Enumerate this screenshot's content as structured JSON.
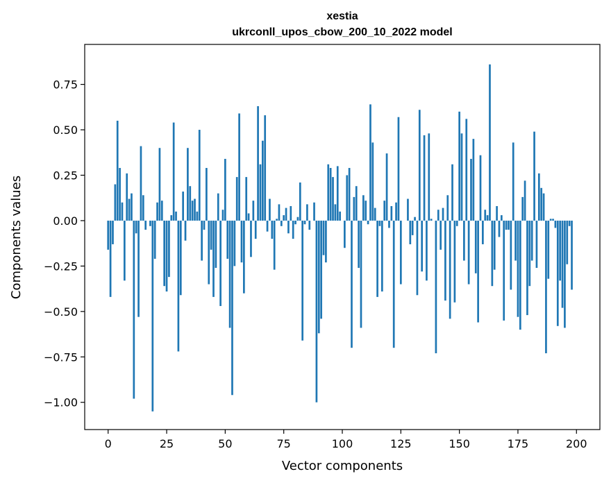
{
  "chart_data": {
    "type": "bar",
    "title": "xestia",
    "subtitle": "ukrconll_upos_cbow_200_10_2022 model",
    "xlabel": "Vector components",
    "ylabel": "Components values",
    "xlim": [
      -10,
      210
    ],
    "ylim": [
      -1.15,
      0.97
    ],
    "xticks": [
      0,
      25,
      50,
      75,
      100,
      125,
      150,
      175,
      200
    ],
    "xtick_labels": [
      "0",
      "25",
      "50",
      "75",
      "100",
      "125",
      "150",
      "175",
      "200"
    ],
    "yticks": [
      -1.0,
      -0.75,
      -0.5,
      -0.25,
      0.0,
      0.25,
      0.5,
      0.75
    ],
    "ytick_labels": [
      "−1.00",
      "−0.75",
      "−0.50",
      "−0.25",
      "0.00",
      "0.25",
      "0.50",
      "0.75"
    ],
    "grid": false,
    "bar_color": "#1f77b4",
    "values": [
      -0.16,
      -0.42,
      -0.13,
      0.2,
      0.55,
      0.29,
      0.1,
      -0.33,
      0.26,
      0.12,
      0.15,
      -0.98,
      -0.07,
      -0.53,
      0.41,
      0.14,
      -0.05,
      0.0,
      -0.03,
      -1.05,
      -0.21,
      0.1,
      0.4,
      0.11,
      -0.36,
      -0.39,
      -0.31,
      0.03,
      0.54,
      0.05,
      -0.72,
      -0.41,
      0.16,
      -0.11,
      0.4,
      0.19,
      0.11,
      0.12,
      0.05,
      0.5,
      -0.22,
      -0.05,
      0.29,
      -0.35,
      -0.16,
      -0.42,
      -0.26,
      0.15,
      -0.47,
      0.06,
      0.34,
      -0.21,
      -0.59,
      -0.96,
      -0.25,
      0.24,
      0.59,
      -0.23,
      -0.4,
      0.24,
      0.04,
      -0.2,
      0.11,
      -0.1,
      0.63,
      0.31,
      0.44,
      0.58,
      -0.06,
      0.12,
      -0.1,
      -0.27,
      0.01,
      0.09,
      -0.03,
      0.03,
      0.07,
      -0.07,
      0.08,
      -0.1,
      -0.02,
      0.02,
      0.21,
      -0.66,
      -0.02,
      0.09,
      -0.05,
      0.0,
      0.1,
      -1.0,
      -0.62,
      -0.54,
      -0.19,
      -0.23,
      0.31,
      0.29,
      0.24,
      0.09,
      0.3,
      0.05,
      0.0,
      -0.15,
      0.25,
      0.29,
      -0.7,
      0.13,
      0.19,
      -0.26,
      -0.59,
      0.14,
      0.11,
      -0.02,
      0.64,
      0.43,
      0.07,
      -0.42,
      -0.03,
      -0.39,
      0.11,
      0.37,
      -0.04,
      0.08,
      -0.7,
      0.1,
      0.57,
      -0.35,
      0.0,
      0.0,
      0.12,
      -0.13,
      -0.08,
      0.02,
      -0.41,
      0.61,
      -0.28,
      0.47,
      -0.33,
      0.48,
      0.01,
      0.0,
      -0.73,
      0.06,
      -0.16,
      0.07,
      -0.44,
      0.14,
      -0.54,
      0.31,
      -0.45,
      -0.03,
      0.6,
      0.48,
      -0.22,
      0.56,
      -0.35,
      0.34,
      0.45,
      -0.29,
      -0.56,
      0.36,
      -0.13,
      0.06,
      0.03,
      0.86,
      -0.36,
      -0.27,
      0.08,
      -0.09,
      0.03,
      -0.55,
      -0.05,
      -0.05,
      -0.38,
      0.43,
      -0.22,
      -0.53,
      -0.6,
      0.13,
      0.22,
      -0.52,
      -0.36,
      -0.22,
      0.49,
      -0.26,
      0.26,
      0.18,
      0.15,
      -0.73,
      -0.32,
      0.01,
      0.01,
      -0.04,
      -0.58,
      -0.33,
      -0.48,
      -0.59,
      -0.24,
      -0.03,
      -0.38
    ]
  }
}
